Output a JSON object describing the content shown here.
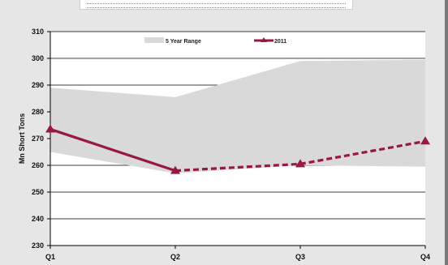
{
  "chart_data": {
    "type": "line",
    "title": "",
    "xlabel": "",
    "ylabel": "Mn Short Tons",
    "categories": [
      "Q1",
      "Q2",
      "Q3",
      "Q4"
    ],
    "ylim": [
      230,
      310
    ],
    "yticks": [
      230,
      240,
      250,
      260,
      270,
      280,
      290,
      300,
      310
    ],
    "grid": true,
    "legend_position": "top",
    "series": [
      {
        "name": "5 Year Range",
        "kind": "range-area",
        "high": [
          289,
          285.5,
          299,
          299.5
        ],
        "low": [
          265,
          257,
          260,
          259.5
        ],
        "color": "#d9d9d9"
      },
      {
        "name": "2011",
        "kind": "line",
        "values": [
          273.5,
          258,
          260.5,
          269
        ],
        "solid_through_index": 1,
        "color": "#99183f"
      }
    ]
  }
}
